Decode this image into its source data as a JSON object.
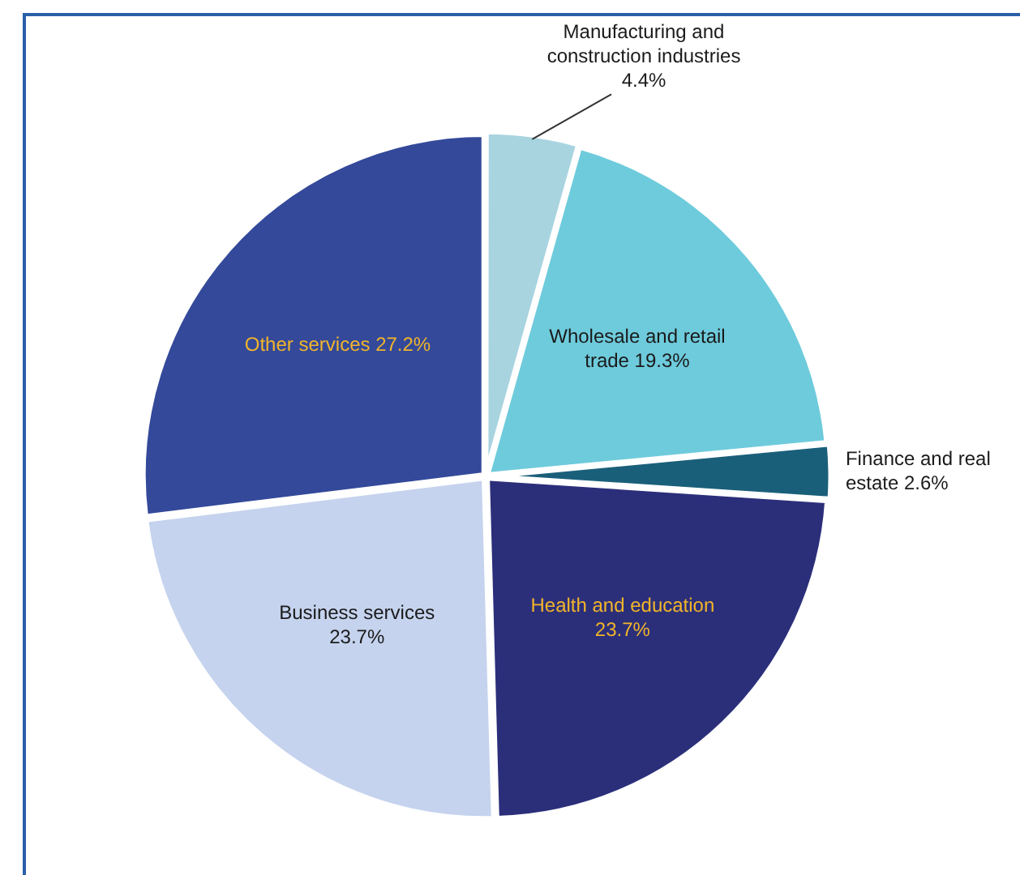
{
  "chart_data": {
    "type": "pie",
    "categories": [
      "Manufacturing and construction industries",
      "Wholesale and retail trade",
      "Finance and real estate",
      "Health and education",
      "Business services",
      "Other services"
    ],
    "values": [
      4.4,
      19.3,
      2.6,
      23.7,
      23.7,
      27.2
    ],
    "value_labels": [
      "4.4%",
      "19.3%",
      "2.6%",
      "23.7%",
      "23.7%",
      "27.2%"
    ],
    "colors": [
      "#a8d4e0",
      "#6ecbdc",
      "#1a5f7a",
      "#2b2f7a",
      "#c5d3ee",
      "#34499a"
    ],
    "legend": false
  }
}
